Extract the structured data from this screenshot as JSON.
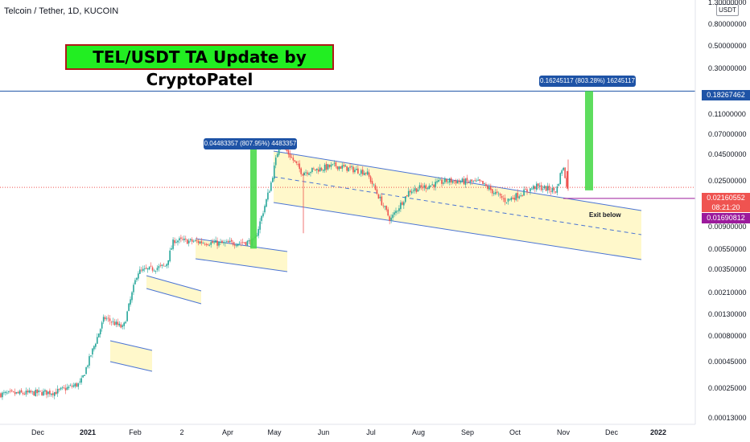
{
  "header": {
    "symbol": "Telcoin / Tether, 1D, KUCOIN",
    "banner": "TEL/USDT TA Update by CryptoPatel",
    "currency": "USDT"
  },
  "annotations": {
    "measure_1": "0.04483357 (807.95%) 4483357",
    "measure_2": "0.16245117 (803.28%) 16245117",
    "exit": "Exit below"
  },
  "price_axis": [
    "1.30000000",
    "0.80000000",
    "0.50000000",
    "0.30000000",
    "0.11000000",
    "0.07000000",
    "0.04500000",
    "0.02500000",
    "0.00900000",
    "0.00550000",
    "0.00350000",
    "0.00210000",
    "0.00130000",
    "0.00080000",
    "0.00045000",
    "0.00025000",
    "0.00013000"
  ],
  "price_tags": {
    "target": "0.18267462",
    "last_price": "0.02160552",
    "countdown": "08:21:20",
    "exit_level": "0.01690812"
  },
  "time_axis": [
    "Dec",
    "2021",
    "Feb",
    "2",
    "Apr",
    "May",
    "Jun",
    "Jul",
    "Aug",
    "Sep",
    "Oct",
    "Nov",
    "Dec",
    "2022"
  ],
  "colors": {
    "up": "#26a69a",
    "down": "#ef5350",
    "channel_fill": "#fff7c2",
    "channel_line": "#4a74d4",
    "target_line": "#1e53a6",
    "exit_line": "#9c1a9c",
    "projection": "#4cd94c",
    "last_price": "#ef5350"
  },
  "chart_data": {
    "type": "candlestick",
    "title": "Telcoin / Tether, 1D, KUCOIN",
    "y_scale": "log",
    "ylim": [
      0.00012,
      1.3
    ],
    "x_range": [
      "2020-11-15",
      "2022-01-20"
    ],
    "approximate_close_path": [
      {
        "date": "2020-11-15",
        "price": 0.00022
      },
      {
        "date": "2020-12-20",
        "price": 0.00023
      },
      {
        "date": "2021-01-05",
        "price": 0.00028
      },
      {
        "date": "2021-01-20",
        "price": 0.0012
      },
      {
        "date": "2021-02-01",
        "price": 0.00095
      },
      {
        "date": "2021-02-10",
        "price": 0.0033
      },
      {
        "date": "2021-02-28",
        "price": 0.0038
      },
      {
        "date": "2021-03-05",
        "price": 0.0067
      },
      {
        "date": "2021-04-05",
        "price": 0.0062
      },
      {
        "date": "2021-04-25",
        "price": 0.0065
      },
      {
        "date": "2021-05-05",
        "price": 0.022
      },
      {
        "date": "2021-05-11",
        "price": 0.06
      },
      {
        "date": "2021-05-25",
        "price": 0.03
      },
      {
        "date": "2021-06-15",
        "price": 0.035
      },
      {
        "date": "2021-07-05",
        "price": 0.03
      },
      {
        "date": "2021-07-20",
        "price": 0.0105
      },
      {
        "date": "2021-08-01",
        "price": 0.02
      },
      {
        "date": "2021-08-25",
        "price": 0.025
      },
      {
        "date": "2021-09-15",
        "price": 0.024
      },
      {
        "date": "2021-10-01",
        "price": 0.016
      },
      {
        "date": "2021-10-20",
        "price": 0.022
      },
      {
        "date": "2021-11-02",
        "price": 0.02
      },
      {
        "date": "2021-11-06",
        "price": 0.035
      },
      {
        "date": "2021-11-09",
        "price": 0.02160552
      }
    ],
    "horizontal_levels": [
      {
        "label": "0.18267462",
        "price": 0.18267462
      },
      {
        "label": "0.01690812",
        "price": 0.01690812
      },
      {
        "label": "0.02160552",
        "price": 0.02160552
      }
    ],
    "measures": [
      {
        "label": "0.04483357 (807.95%) 4483357",
        "from": 0.00555,
        "to": 0.0503
      },
      {
        "label": "0.16245117 (803.28%) 16245117",
        "from": 0.0202,
        "to": 0.18267462
      }
    ]
  }
}
